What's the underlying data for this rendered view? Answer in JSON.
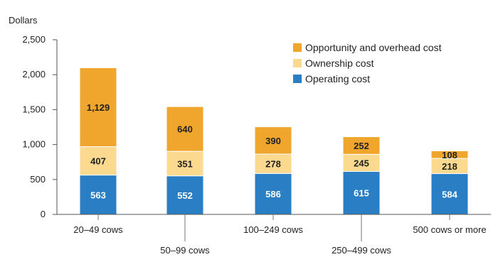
{
  "chart_data": {
    "type": "bar",
    "stacked": true,
    "ylabel": "Dollars",
    "ylim": [
      0,
      2500
    ],
    "yticks": [
      "0",
      "500",
      "1,000",
      "1,500",
      "2,000",
      "2,500"
    ],
    "categories": [
      "20–49 cows",
      "50–99 cows",
      "100–249 cows",
      "250–499 cows",
      "500 cows or more"
    ],
    "series": [
      {
        "name": "Operating cost",
        "values": [
          563,
          552,
          586,
          615,
          584
        ],
        "labels": [
          "563",
          "552",
          "586",
          "615",
          "584"
        ],
        "color": "#2a7fc4",
        "label_color": "#ffffff"
      },
      {
        "name": "Ownership cost",
        "values": [
          407,
          351,
          278,
          245,
          218
        ],
        "labels": [
          "407",
          "351",
          "278",
          "245",
          "218"
        ],
        "color": "#fbd98f",
        "label_color": "#222222"
      },
      {
        "name": "Opportunity and overhead cost",
        "values": [
          1129,
          640,
          390,
          252,
          108
        ],
        "labels": [
          "1,129",
          "640",
          "390",
          "252",
          "108"
        ],
        "color": "#f0a62d",
        "label_color": "#222222"
      }
    ],
    "legend_order": [
      2,
      1,
      0
    ],
    "legend_position": "top-right",
    "grid": false
  }
}
